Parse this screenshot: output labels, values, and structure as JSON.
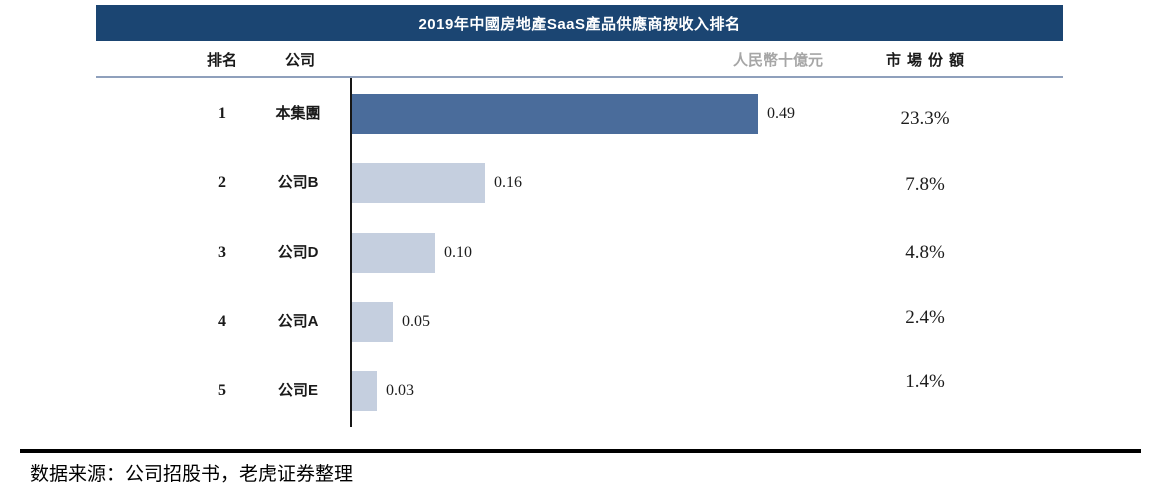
{
  "chart": {
    "title": "2019年中國房地產SaaS產品供應商按收入排名",
    "columns": {
      "rank": "排名",
      "company": "公司",
      "unit": "人民幣十億元",
      "share": "市場份額"
    },
    "rows": [
      {
        "rank": "1",
        "company": "本集團",
        "value": "0.49",
        "share": "23.3%"
      },
      {
        "rank": "2",
        "company": "公司B",
        "value": "0.16",
        "share": "7.8%"
      },
      {
        "rank": "3",
        "company": "公司D",
        "value": "0.10",
        "share": "4.8%"
      },
      {
        "rank": "4",
        "company": "公司A",
        "value": "0.05",
        "share": "2.4%"
      },
      {
        "rank": "5",
        "company": "公司E",
        "value": "0.03",
        "share": "1.4%"
      }
    ]
  },
  "chart_data": {
    "type": "bar",
    "orientation": "horizontal",
    "title": "2019年中國房地產SaaS產品供應商按收入排名",
    "categories": [
      "本集團",
      "公司B",
      "公司D",
      "公司A",
      "公司E"
    ],
    "ranks": [
      1,
      2,
      3,
      4,
      5
    ],
    "values": [
      0.49,
      0.16,
      0.1,
      0.05,
      0.03
    ],
    "shares_percent": [
      23.3,
      7.8,
      4.8,
      2.4,
      1.4
    ],
    "unit_label": "人民幣十億元",
    "share_column_label": "市場份額",
    "xlim": [
      0,
      0.49
    ],
    "grid": false,
    "legend": "none",
    "colors": {
      "highlight_bar": "#4A6C9B",
      "default_bar": "#C5CFDF",
      "title_background": "#1B4572",
      "title_text": "#FFFFFF",
      "unit_label_text": "#A6A6A6"
    }
  },
  "footer": {
    "source": "数据来源：公司招股书，老虎证券整理"
  }
}
